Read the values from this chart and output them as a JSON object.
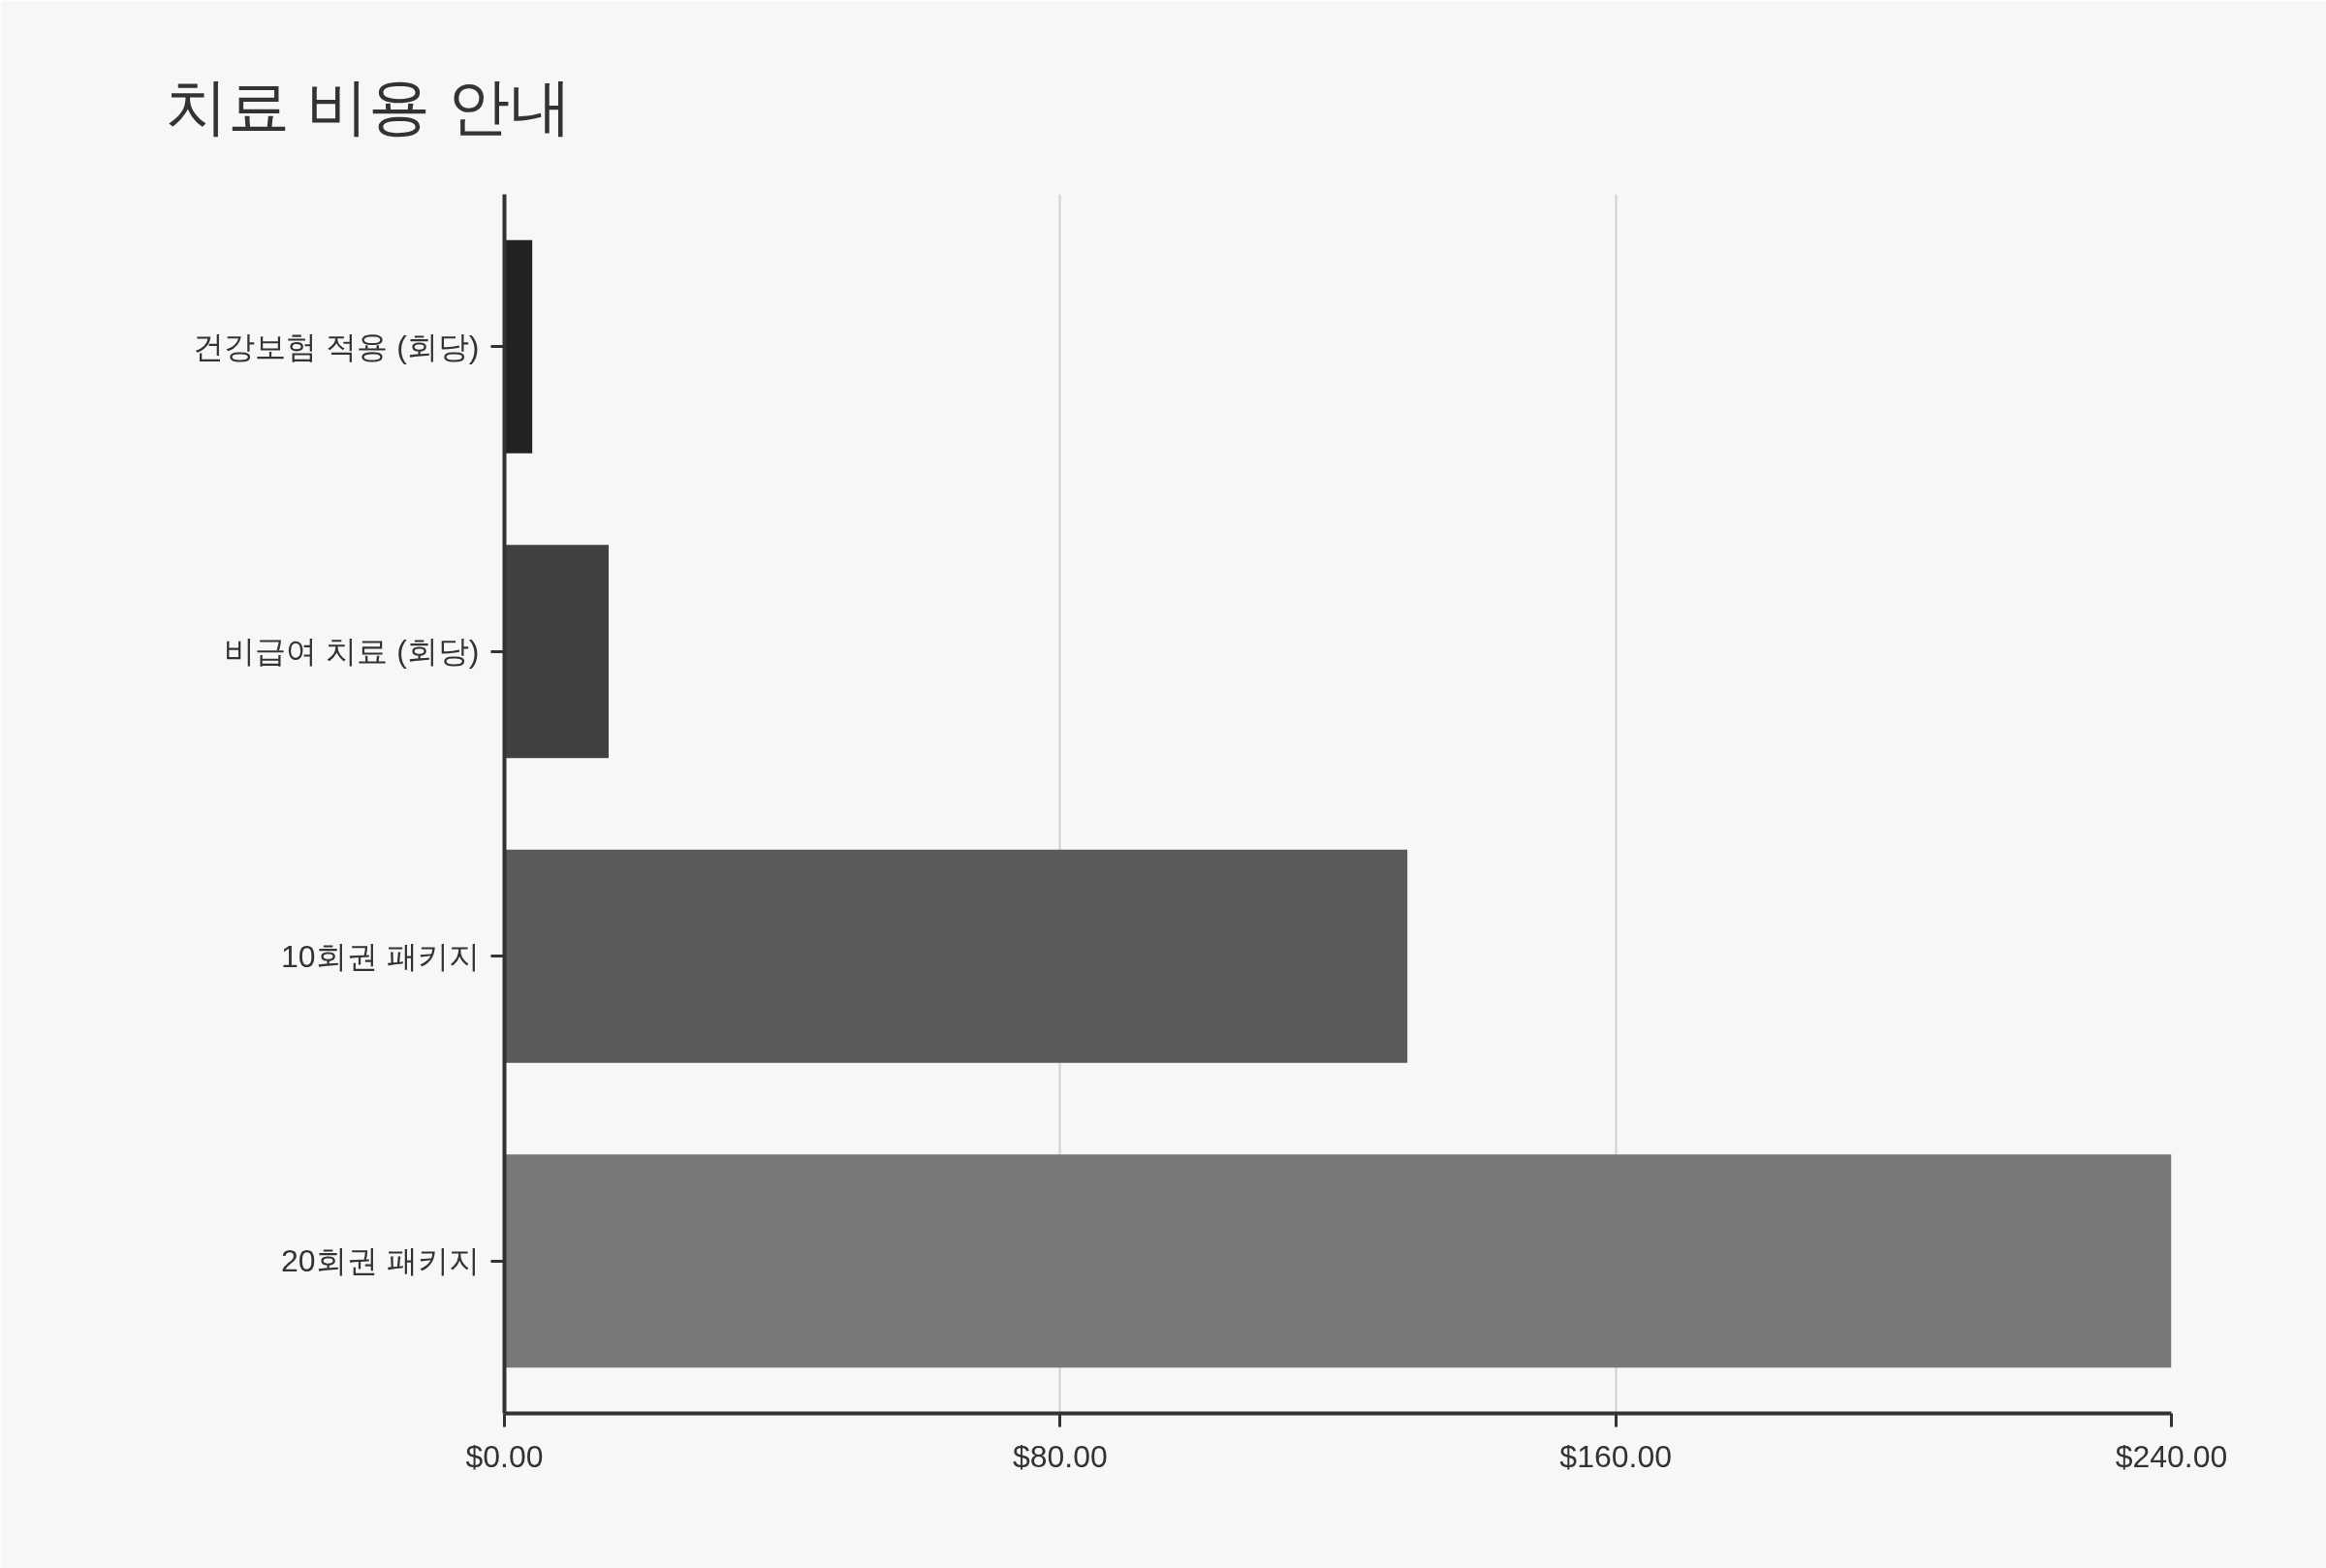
{
  "chart_data": {
    "type": "bar",
    "orientation": "horizontal",
    "title": "치료 비용 안내",
    "categories": [
      "건강보험 적용 (회당)",
      "비급여 치료 (회당)",
      "10회권 패키지",
      "20회권 패키지"
    ],
    "values": [
      4,
      15,
      130,
      240
    ],
    "colors": [
      "#222222",
      "#404040",
      "#5a5a5a",
      "#787878"
    ],
    "xlim": [
      0,
      240
    ],
    "xticks": [
      {
        "value": 0,
        "label": "$0.00"
      },
      {
        "value": 80,
        "label": "$80.00"
      },
      {
        "value": 160,
        "label": "$160.00"
      },
      {
        "value": 240,
        "label": "$240.00"
      }
    ],
    "grid": "x"
  }
}
